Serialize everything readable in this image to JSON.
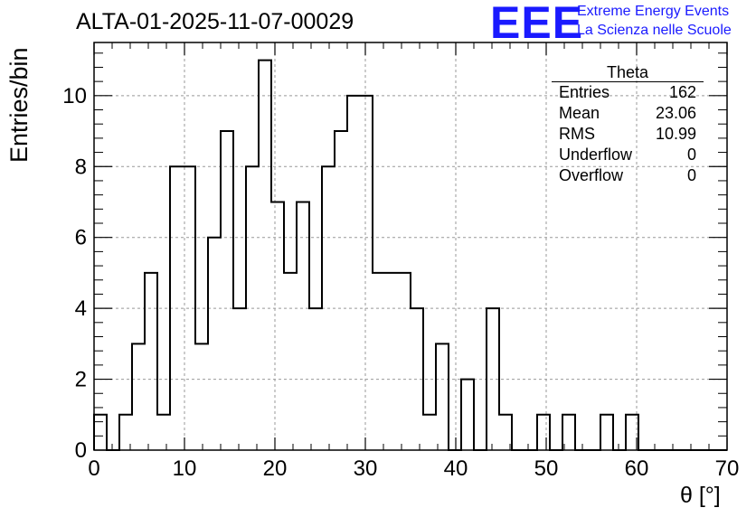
{
  "chart_data": {
    "type": "bar",
    "title": "ALTA-01-2025-11-07-00029",
    "xlabel": "θ [°]",
    "ylabel": "Entries/bin",
    "xlim": [
      0,
      70
    ],
    "ylim": [
      0,
      11.5
    ],
    "bin_width": 1.4,
    "x_ticks": [
      0,
      10,
      20,
      30,
      40,
      50,
      60,
      70
    ],
    "y_ticks": [
      0,
      2,
      4,
      6,
      8,
      10
    ],
    "grid": true,
    "series": [
      {
        "values": [
          1,
          0,
          1,
          3,
          5,
          1,
          8,
          8,
          3,
          6,
          9,
          4,
          8,
          11,
          7,
          5,
          7,
          4,
          8,
          9,
          10,
          10,
          5,
          5,
          5,
          4,
          1,
          3,
          0,
          2,
          0,
          4,
          1,
          0,
          0,
          1,
          0,
          1,
          0,
          0,
          1,
          0,
          1,
          0,
          0,
          0,
          0,
          0,
          0,
          0
        ]
      }
    ],
    "stats_box": {
      "title": "Theta",
      "rows": [
        {
          "label": "Entries",
          "value": "162"
        },
        {
          "label": "Mean",
          "value": "23.06"
        },
        {
          "label": "RMS",
          "value": "10.99"
        },
        {
          "label": "Underflow",
          "value": "0"
        },
        {
          "label": "Overflow",
          "value": "0"
        }
      ]
    }
  },
  "logo": {
    "mark": "EEE",
    "line1": "Extreme Energy Events",
    "line2": "La Scienza nelle Scuole"
  },
  "colors": {
    "accent": "#1a1aff",
    "line": "#000000",
    "grid": "#999999"
  }
}
